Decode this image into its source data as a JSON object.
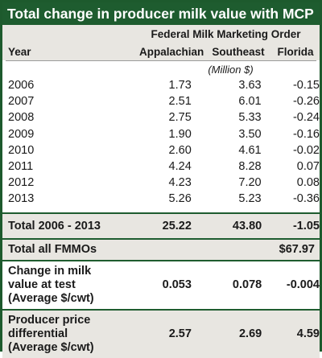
{
  "title": "Total change in producer milk value with MCP",
  "header": {
    "group_label": "Federal Milk Marketing Order",
    "year_label": "Year",
    "columns": [
      "Appalachian",
      "Southeast",
      "Florida"
    ],
    "unit_label": "(Million $)"
  },
  "years": [
    {
      "year": "2006",
      "appalachian": "1.73",
      "southeast": "3.63",
      "florida": "-0.15"
    },
    {
      "year": "2007",
      "appalachian": "2.51",
      "southeast": "6.01",
      "florida": "-0.26"
    },
    {
      "year": "2008",
      "appalachian": "2.75",
      "southeast": "5.33",
      "florida": "-0.24"
    },
    {
      "year": "2009",
      "appalachian": "1.90",
      "southeast": "3.50",
      "florida": "-0.16"
    },
    {
      "year": "2010",
      "appalachian": "2.60",
      "southeast": "4.61",
      "florida": "-0.02"
    },
    {
      "year": "2011",
      "appalachian": "4.24",
      "southeast": "8.28",
      "florida": "0.07"
    },
    {
      "year": "2012",
      "appalachian": "4.23",
      "southeast": "7.20",
      "florida": "0.08"
    },
    {
      "year": "2013",
      "appalachian": "5.26",
      "southeast": "5.23",
      "florida": "-0.36"
    }
  ],
  "total": {
    "label": "Total 2006 - 2013",
    "appalachian": "25.22",
    "southeast": "43.80",
    "florida": "-1.05"
  },
  "fmmo_total": {
    "label": "Total all FMMOs",
    "value": "$67.97"
  },
  "change_row": {
    "label_lines": [
      "Change in milk",
      "value at test",
      "(Average $/cwt)"
    ],
    "appalachian": "0.053",
    "southeast": "0.078",
    "florida": "-0.004"
  },
  "differential_row": {
    "label_lines": [
      "Producer price",
      "differential",
      "(Average $/cwt)"
    ],
    "appalachian": "2.57",
    "southeast": "2.69",
    "florida": "4.59"
  },
  "colors": {
    "title_bg": "#1e5c2f",
    "band": "#e8e6e1",
    "rule": "#1e5c2f"
  }
}
